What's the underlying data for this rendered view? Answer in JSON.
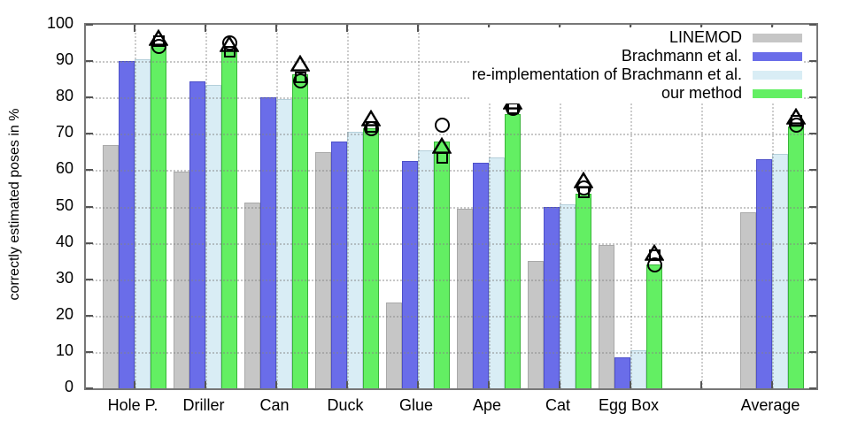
{
  "chart_data": {
    "type": "bar",
    "title": "",
    "ylabel": "correctly estimated poses in %",
    "xlabel": "",
    "ylim": [
      0,
      100
    ],
    "yticks": [
      0,
      10,
      20,
      30,
      40,
      50,
      60,
      70,
      80,
      90,
      100
    ],
    "grid": "dotted",
    "legend_position": "top-right",
    "gap_before_last_category": true,
    "categories": [
      "Hole P.",
      "Driller",
      "Can",
      "Duck",
      "Glue",
      "Ape",
      "Cat",
      "Egg Box",
      "Average"
    ],
    "series": [
      {
        "name": "LINEMOD",
        "color": "#c6c6c6",
        "edge": "#a9a9a9",
        "values": [
          67,
          59.5,
          51,
          65,
          23.5,
          49.5,
          35,
          39.5,
          48.5
        ]
      },
      {
        "name": "Brachmann et al.",
        "color": "#6a6de9",
        "edge": "#4d50c9",
        "values": [
          90,
          84.5,
          80,
          68,
          62.5,
          62,
          50,
          8.5,
          63
        ]
      },
      {
        "name": "re-implementation of Brachmann et al.",
        "color": "#d9edf5",
        "edge": "#b4cfda",
        "values": [
          90.5,
          83.5,
          79.5,
          70.5,
          65.5,
          63.5,
          50.5,
          10.5,
          64.5
        ]
      },
      {
        "name": "our method",
        "color": "#63ef63",
        "edge": "#38b438",
        "values": [
          94.5,
          93,
          86.5,
          71.5,
          68,
          75.5,
          53.5,
          34,
          72
        ]
      }
    ],
    "overlay_markers": {
      "plotted_on_series": "our method",
      "circle": [
        94,
        95,
        84.5,
        71.5,
        72.5,
        77,
        55,
        34,
        72.5
      ],
      "square": [
        95.5,
        92.5,
        85.5,
        72,
        63.5,
        77,
        54,
        36.5,
        73.5
      ],
      "triangle": [
        96,
        94.5,
        89,
        74,
        66.5,
        78.5,
        57,
        37,
        74.5
      ]
    }
  }
}
